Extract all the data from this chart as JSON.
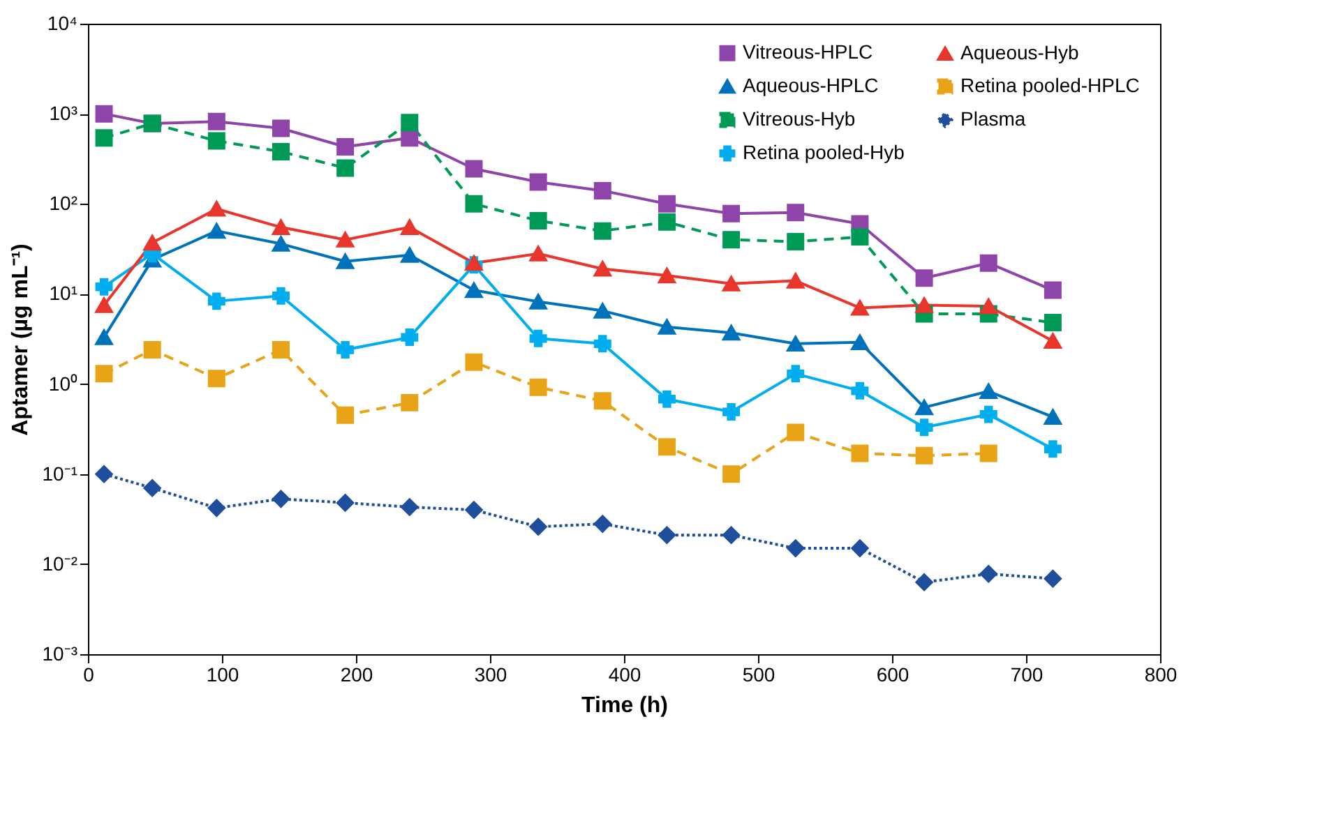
{
  "chart_data": {
    "type": "line",
    "xlabel": "Time (h)",
    "ylabel": "Aptamer (µg mL⁻¹)",
    "log": "y",
    "x": [
      12,
      48,
      96,
      144,
      192,
      240,
      288,
      336,
      384,
      432,
      480,
      528,
      576,
      624,
      672,
      720
    ],
    "xlim": [
      0,
      800
    ],
    "xticks": [
      0,
      100,
      200,
      300,
      400,
      500,
      600,
      700,
      800
    ],
    "ylim": [
      0.001,
      10000
    ],
    "yticks": [
      {
        "value": 0.001,
        "label": "10⁻³"
      },
      {
        "value": 0.01,
        "label": "10⁻²"
      },
      {
        "value": 0.1,
        "label": "10⁻¹"
      },
      {
        "value": 1,
        "label": "10⁰"
      },
      {
        "value": 10,
        "label": "10¹"
      },
      {
        "value": 100,
        "label": "10²"
      },
      {
        "value": 1000,
        "label": "10³"
      },
      {
        "value": 10000,
        "label": "10⁴"
      }
    ],
    "grid": false,
    "legend": "top right",
    "series": [
      {
        "name": "Vitreous-HPLC",
        "color": "#8e44a8",
        "marker": "square",
        "line_style": "solid",
        "values": [
          1000,
          780,
          820,
          690,
          430,
          540,
          245,
          175,
          140,
          100,
          78,
          80,
          60,
          15,
          22,
          11
        ]
      },
      {
        "name": "Aqueous-HPLC",
        "color": "#0072bc",
        "marker": "triangle",
        "line_style": "solid",
        "values": [
          3.3,
          24,
          50,
          36,
          23,
          27,
          11,
          8.2,
          6.5,
          4.3,
          3.7,
          2.8,
          2.9,
          0.55,
          0.83,
          0.43
        ]
      },
      {
        "name": "Vitreous-Hyb",
        "color": "#009a57",
        "marker": "square",
        "line_style": "dashed",
        "values": [
          540,
          780,
          500,
          380,
          250,
          800,
          100,
          65,
          50,
          63,
          40,
          38,
          43,
          6,
          6,
          4.8
        ]
      },
      {
        "name": "Retina pooled-Hyb",
        "color": "#00aeef",
        "marker": "cross",
        "line_style": "solid",
        "values": [
          12,
          28,
          8.3,
          9.5,
          2.4,
          3.3,
          21,
          3.2,
          2.8,
          0.68,
          0.49,
          1.3,
          0.84,
          0.33,
          0.46,
          0.19
        ]
      },
      {
        "name": "Aqueous-Hyb",
        "color": "#e8362d",
        "marker": "triangle",
        "line_style": "solid",
        "values": [
          7.5,
          37,
          88,
          55,
          40,
          55,
          22,
          28,
          19,
          16,
          13,
          14,
          7,
          7.5,
          7.3,
          3
        ]
      },
      {
        "name": "Retina pooled-HPLC",
        "color": "#e8a317",
        "marker": "square",
        "line_style": "dashed",
        "values": [
          1.3,
          2.4,
          1.15,
          2.4,
          0.45,
          0.62,
          1.75,
          0.92,
          0.65,
          0.2,
          0.1,
          0.29,
          0.17,
          0.16,
          0.17,
          null
        ]
      },
      {
        "name": "Plasma",
        "color": "#1f4e9c",
        "marker": "diamond",
        "line_style": "dotted",
        "values": [
          0.1,
          0.07,
          0.042,
          0.053,
          0.048,
          0.043,
          0.04,
          0.026,
          0.028,
          0.021,
          0.021,
          0.015,
          0.015,
          0.0063,
          0.0078,
          0.0069
        ]
      }
    ]
  }
}
